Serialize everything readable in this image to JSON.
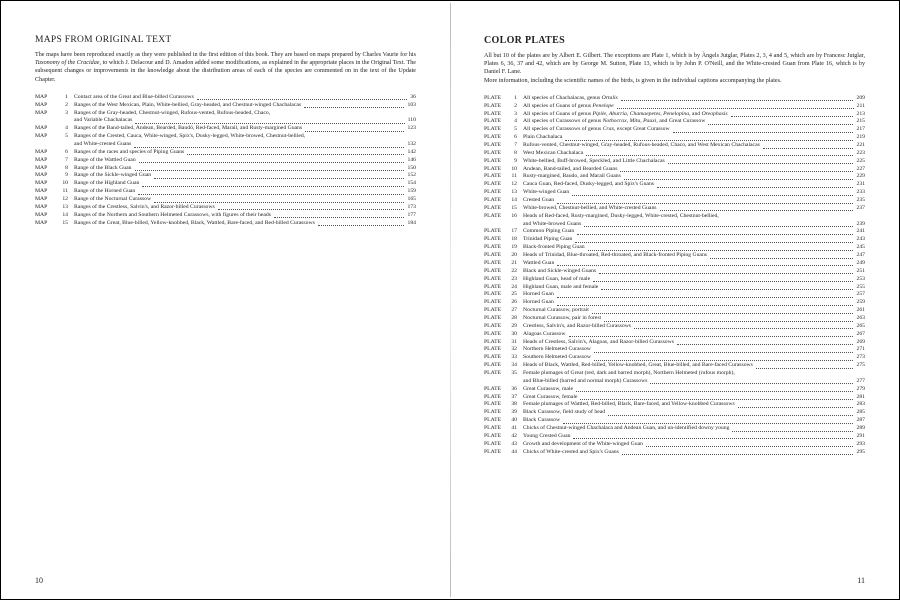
{
  "left": {
    "heading": "MAPS FROM ORIGINAL TEXT",
    "intro": "The maps have been reproduced exactly as they were published in the first edition of this book. They are based on maps prepared by Charles Vaurie for his <span class=\"italic\">Taxonomy of the Cracidae</span>, to which J. Delacour and D. Amadon added some modifications, as explained in the appropriate places in the Original Text. The subsequent changes or improvements in the knowledge about the distribution areas of each of the species are commented on in the text of the Update Chapter.",
    "label": "MAP",
    "items": [
      {
        "n": "1",
        "t": "Contact area of the Great and Blue-billed Curassows",
        "p": "36"
      },
      {
        "n": "2",
        "t": "Ranges of the West Mexican, Plain, White-bellied, Gray-headed, and Chestnut-winged Chachalacas",
        "p": "103"
      },
      {
        "n": "3",
        "t": "Ranges of the Gray-headed, Chestnut-winged, Rufous-vented, Rufous-headed, Chaco,",
        "cont": "and Variable Chachalacas",
        "p": "110"
      },
      {
        "n": "4",
        "t": "Ranges of the Band-tailed, Andean, Bearded, Baudó, Red-faced, Marail, and Rusty-margined Guans",
        "p": "123"
      },
      {
        "n": "5",
        "t": "Ranges of the Crested, Cauca, White-winged, Spix's, Dusky-legged, White-browed, Chestnut-bellied,",
        "cont": "and White-crested Guans",
        "p": "132"
      },
      {
        "n": "6",
        "t": "Ranges of the races and species of Piping Guans",
        "p": "142"
      },
      {
        "n": "7",
        "t": "Range of the Wattled Guan",
        "p": "146"
      },
      {
        "n": "8",
        "t": "Range of the Black Guan",
        "p": "150"
      },
      {
        "n": "9",
        "t": "Range of the Sickle-winged Guan",
        "p": "152"
      },
      {
        "n": "10",
        "t": "Range of the Highland Guan",
        "p": "154"
      },
      {
        "n": "11",
        "t": "Range of the Horned Guan",
        "p": "159"
      },
      {
        "n": "12",
        "t": "Range of the Nocturnal Curassow",
        "p": "165"
      },
      {
        "n": "13",
        "t": "Ranges of the Crestless, Salvin's, and Razor-billed Curassows",
        "p": "173"
      },
      {
        "n": "14",
        "t": "Ranges of the Northern and Southern Helmeted Curassows, with figures of their heads",
        "p": "177"
      },
      {
        "n": "15",
        "t": "Ranges of the Great, Blue-billed, Yellow-knobbed, Black, Wattled, Bare-faced, and Red-billed Curassows",
        "p": "184"
      }
    ],
    "pagenum": "10"
  },
  "right": {
    "heading": "COLOR PLATES",
    "intro": "All but 10 of the plates are by Albert E. Gilbert. The exceptions are Plate 1, which is by Àngels Jutglar, Plates 2, 3, 4 and 5, which are by Francesc Jutglar, Plates 6, 36, 37 and 42, which are by George M. Sutton, Plate 13, which is by John P. O'Neill, and the White-crested Guan from Plate 16, which is by Daniel F. Lane.<br>More information, including the scientific names of the birds, is given in the individual captions accompanying the plates.",
    "label": "PLATE",
    "items": [
      {
        "n": "1",
        "t": "All species of Chachalacas, genus <span class=\"italic\">Ortalis</span>",
        "p": "209"
      },
      {
        "n": "2",
        "t": "All species of Guans of genus <span class=\"italic\">Penelope</span>",
        "p": "211"
      },
      {
        "n": "3",
        "t": "All species of Guans of genus <span class=\"italic\">Pipile, Aburria, Chamaepetes, Penelopina,</span> and <span class=\"italic\">Oreophasis</span>",
        "p": "213"
      },
      {
        "n": "4",
        "t": "All species of Curassows of genus <span class=\"italic\">Nothocrax, Mitu, Pauxi,</span> and Great Curassow",
        "p": "215"
      },
      {
        "n": "5",
        "t": "All species of Curassows of genus <span class=\"italic\">Crax</span>, except Great Curassow",
        "p": "217"
      },
      {
        "n": "6",
        "t": "Plain Chachalaca",
        "p": "219"
      },
      {
        "n": "7",
        "t": "Rufous-vented, Chestnut-winged, Gray-headed, Rufous-headed, Chaco, and West Mexican Chachalacas",
        "p": "221"
      },
      {
        "n": "8",
        "t": "West Mexican Chachalaca",
        "p": "223"
      },
      {
        "n": "9",
        "t": "White-bellied, Buff-browed, Speckled, and Little Chachalacas",
        "p": "225"
      },
      {
        "n": "10",
        "t": "Andean, Band-tailed, and Bearded Guans",
        "p": "227"
      },
      {
        "n": "11",
        "t": "Rusty-margined, Baudo, and Marail Guans",
        "p": "229"
      },
      {
        "n": "12",
        "t": "Cauca Guan, Red-faced, Dusky-legged, and Spix's Guans",
        "p": "231"
      },
      {
        "n": "13",
        "t": "White-winged Guan",
        "p": "233"
      },
      {
        "n": "14",
        "t": "Crested Guan",
        "p": "235"
      },
      {
        "n": "15",
        "t": "White-browed, Chestnut-bellied, and White-crested Guans",
        "p": "237"
      },
      {
        "n": "16",
        "t": "Heads of Red-faced, Rusty-margined, Dusky-legged, White-crested, Chestnut-bellied,",
        "cont": "and White-browed Guans",
        "p": "239"
      },
      {
        "n": "17",
        "t": "Common Piping Guan",
        "p": "241"
      },
      {
        "n": "18",
        "t": "Trinidad Piping Guan",
        "p": "243"
      },
      {
        "n": "19",
        "t": "Black-fronted Piping Guan",
        "p": "245"
      },
      {
        "n": "20",
        "t": "Heads of Trinidad, Blue-throated, Red-throated, and Black-fronted Piping Guans",
        "p": "247"
      },
      {
        "n": "21",
        "t": "Wattled Guan",
        "p": "249"
      },
      {
        "n": "22",
        "t": "Black and Sickle-winged Guans",
        "p": "251"
      },
      {
        "n": "23",
        "t": "Highland Guan, head of male",
        "p": "253"
      },
      {
        "n": "24",
        "t": "Highland Guan, male and female",
        "p": "255"
      },
      {
        "n": "25",
        "t": "Horned Guan",
        "p": "257"
      },
      {
        "n": "26",
        "t": "Horned Guan",
        "p": "259"
      },
      {
        "n": "27",
        "t": "Nocturnal Curassow, portrait",
        "p": "261"
      },
      {
        "n": "28",
        "t": "Nocturnal Curassow, pair in forest",
        "p": "263"
      },
      {
        "n": "29",
        "t": "Crestless, Salvin's, and Razor-billed Curassows",
        "p": "265"
      },
      {
        "n": "30",
        "t": "Alagoas Curassow",
        "p": "267"
      },
      {
        "n": "31",
        "t": "Heads of Crestless, Salvin's, Alagoas, and Razor-billed Curassows",
        "p": "269"
      },
      {
        "n": "32",
        "t": "Northern Helmeted Curassow",
        "p": "271"
      },
      {
        "n": "33",
        "t": "Southern Helmeted Curassow",
        "p": "273"
      },
      {
        "n": "34",
        "t": "Heads of Black, Wattled, Red-billed, Yellow-knobbed, Great, Blue-billed, and Bare-faced Curassows",
        "p": "275"
      },
      {
        "n": "35",
        "t": "Female plumages of Great (red, dark and barred morph), Northern Helmeted (rufous morph),",
        "cont": "and Blue-billed (barred and normal morph) Curassows",
        "p": "277"
      },
      {
        "n": "36",
        "t": "Great Curassow, male",
        "p": "279"
      },
      {
        "n": "37",
        "t": "Great Curassow, female",
        "p": "281"
      },
      {
        "n": "38",
        "t": "Female plumages of Wattled, Red-billed, Black, Bare-faced, and Yellow-knobbed Curassows",
        "p": "283"
      },
      {
        "n": "39",
        "t": "Black Curassow, field study of head",
        "p": "285"
      },
      {
        "n": "40",
        "t": "Black Curassow",
        "p": "287"
      },
      {
        "n": "41",
        "t": "Chicks of Chestnut-winged Chachalaca and Andean Guan, and un-identified downy young",
        "p": "289"
      },
      {
        "n": "42",
        "t": "Young Crested Guan",
        "p": "291"
      },
      {
        "n": "43",
        "t": "Growth and development of the White-winged Guan",
        "p": "293"
      },
      {
        "n": "44",
        "t": "Chicks of White-crested and Spix's Guans",
        "p": "295"
      }
    ],
    "pagenum": "11"
  }
}
